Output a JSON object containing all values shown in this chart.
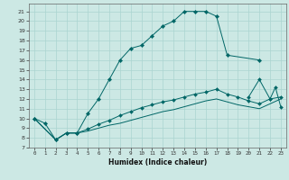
{
  "bg_color": "#cce8e4",
  "grid_color": "#aad4d0",
  "line_color": "#006666",
  "xlabel": "Humidex (Indice chaleur)",
  "xlim": [
    -0.5,
    23.5
  ],
  "ylim": [
    7,
    21.8
  ],
  "yticks": [
    7,
    8,
    9,
    10,
    11,
    12,
    13,
    14,
    15,
    16,
    17,
    18,
    19,
    20,
    21
  ],
  "xticks": [
    0,
    1,
    2,
    3,
    4,
    5,
    6,
    7,
    8,
    9,
    10,
    11,
    12,
    13,
    14,
    15,
    16,
    17,
    18,
    19,
    20,
    21,
    22,
    23
  ],
  "curve_upper_x": [
    0,
    1,
    2,
    3,
    4,
    5,
    6,
    7,
    8,
    9,
    10,
    11,
    12,
    13,
    14,
    15,
    16,
    17,
    18,
    21
  ],
  "curve_upper_y": [
    10.0,
    9.5,
    7.8,
    8.5,
    8.5,
    10.5,
    12.0,
    14.0,
    16.0,
    17.2,
    17.5,
    18.5,
    19.5,
    20.0,
    21.0,
    21.0,
    21.0,
    20.5,
    16.5,
    16.0
  ],
  "curve_mid_x": [
    0,
    2,
    3,
    4,
    5,
    6,
    7,
    8,
    9,
    10,
    11,
    12,
    13,
    14,
    15,
    16,
    17,
    18,
    19,
    20,
    21,
    22,
    23
  ],
  "curve_mid_y": [
    10.0,
    7.8,
    8.5,
    8.5,
    8.9,
    9.4,
    9.8,
    10.3,
    10.7,
    11.1,
    11.4,
    11.7,
    11.9,
    12.2,
    12.5,
    12.7,
    13.0,
    12.5,
    12.2,
    11.8,
    11.5,
    12.0,
    12.2
  ],
  "curve_low_x": [
    0,
    2,
    3,
    4,
    5,
    6,
    7,
    8,
    9,
    10,
    11,
    12,
    13,
    14,
    15,
    16,
    17,
    18,
    19,
    20,
    21,
    22,
    23
  ],
  "curve_low_y": [
    10.0,
    7.8,
    8.5,
    8.5,
    8.7,
    9.0,
    9.3,
    9.5,
    9.8,
    10.1,
    10.4,
    10.7,
    10.9,
    11.2,
    11.5,
    11.8,
    12.0,
    11.7,
    11.4,
    11.2,
    11.0,
    11.5,
    12.0
  ],
  "spike_x": [
    20,
    21,
    22,
    22.5,
    23
  ],
  "spike_y": [
    12.2,
    14.0,
    12.0,
    13.2,
    11.2
  ]
}
